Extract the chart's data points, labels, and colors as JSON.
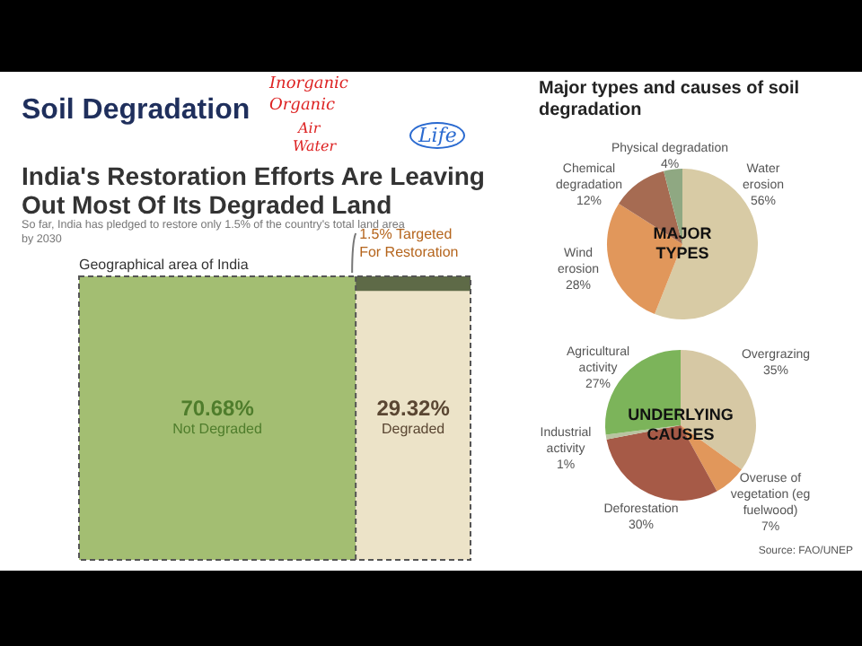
{
  "chart_data": [
    {
      "type": "other",
      "title": "India's Restoration Efforts Are Leaving Out Most Of Its Degraded Land",
      "subtitle": "So far, India has pledged to restore only 1.5% of the country's total land area by 2030",
      "categories": [
        "Not Degraded",
        "Degraded",
        "Targeted For Restoration"
      ],
      "values": [
        70.68,
        29.32,
        1.5
      ],
      "colors": [
        "#a3be72",
        "#ece3c8",
        "#5e6a47"
      ],
      "value_labels": [
        "70.68%",
        "29.32%",
        "1.5%"
      ],
      "annotations": [
        "Soil Degradation",
        "Geographical area of India",
        "Inorganic",
        "Organic",
        "Air",
        "Water",
        "Life"
      ]
    },
    {
      "type": "pie",
      "title": "Major types and causes of soil degradation",
      "categories": [
        "Water erosion",
        "Wind erosion",
        "Chemical degradation",
        "Physical degradation"
      ],
      "values": [
        56,
        28,
        12,
        4
      ],
      "colors": [
        "#d8cba5",
        "#e1975b",
        "#a66b52",
        "#8fa882"
      ],
      "value_labels": [
        "56%",
        "28%",
        "12%",
        "4%"
      ],
      "annotations": [
        "MAJOR TYPES"
      ]
    },
    {
      "type": "pie",
      "categories": [
        "Overgrazing",
        "Overuse of vegetation (eg fuelwood)",
        "Deforestation",
        "Industrial activity",
        "Agricultural activity"
      ],
      "values": [
        35,
        7,
        30,
        1,
        27
      ],
      "colors": [
        "#d6c8a4",
        "#e1975b",
        "#a65a47",
        "#b9c3a0",
        "#7cb45a"
      ],
      "value_labels": [
        "35%",
        "7%",
        "30%",
        "1%",
        "27%"
      ],
      "annotations": [
        "UNDERLYING CAUSES",
        "Source: FAO/UNEP"
      ]
    }
  ]
}
